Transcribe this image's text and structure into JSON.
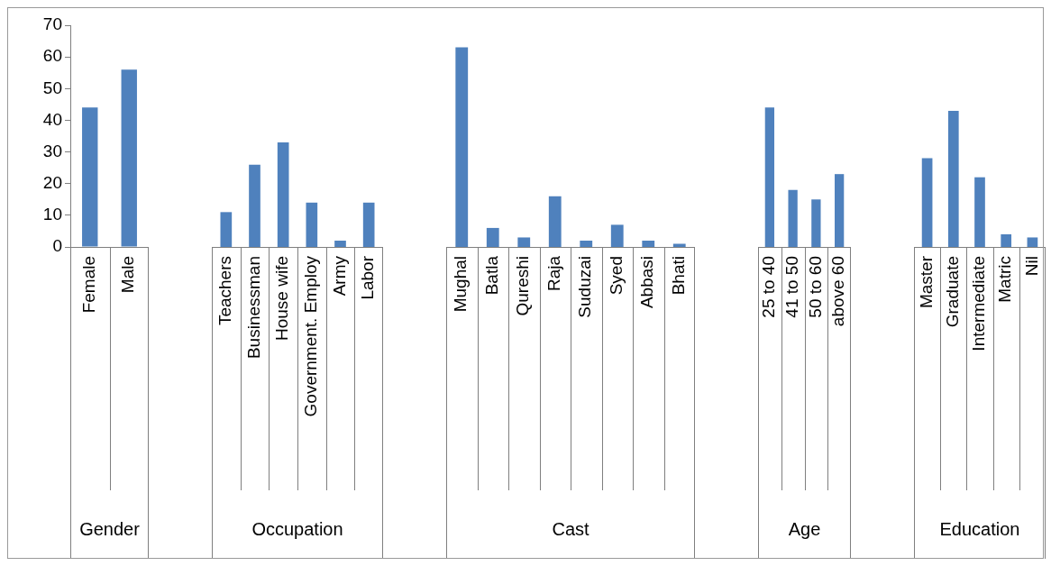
{
  "chart_data": [
    {
      "type": "bar",
      "xlabel": "Gender",
      "categories": [
        "Female",
        "Male"
      ],
      "values": [
        44,
        56
      ],
      "color": "#4f81bd",
      "ylim": [
        0,
        70
      ],
      "yticks": [
        0,
        10,
        20,
        30,
        40,
        50,
        60,
        70
      ],
      "grid": false,
      "legend": false
    },
    {
      "type": "bar",
      "xlabel": "Occupation",
      "categories": [
        "Teachers",
        "Businessman",
        "House wife",
        "Government. Employ",
        "Army",
        "Labor"
      ],
      "values": [
        11,
        26,
        33,
        14,
        2,
        14
      ],
      "color": "#4f81bd",
      "ylim": [
        0,
        70
      ],
      "tick_labels": "x",
      "grid": false,
      "legend": false
    },
    {
      "type": "bar",
      "xlabel": "Cast",
      "categories": [
        "Mughal",
        "Batla",
        "Qureshi",
        "Raja",
        "Suduzai",
        "Syed",
        "Abbasi",
        "Bhati"
      ],
      "values": [
        63,
        6,
        3,
        16,
        2,
        7,
        2,
        1
      ],
      "color": "#4f81bd",
      "ylim": [
        0,
        70
      ],
      "tick_labels": "x",
      "grid": false,
      "legend": false
    },
    {
      "type": "bar",
      "xlabel": "Age",
      "categories": [
        "25 to 40",
        "41 to 50",
        "50 to 60",
        "above 60"
      ],
      "values": [
        44,
        18,
        15,
        23
      ],
      "color": "#4f81bd",
      "ylim": [
        0,
        70
      ],
      "tick_labels": "x",
      "grid": false,
      "legend": false
    },
    {
      "type": "bar",
      "xlabel": "Education",
      "categories": [
        "Master",
        "Graduate",
        "Intermediate",
        "Matric",
        "Nil"
      ],
      "values": [
        28,
        43,
        22,
        4,
        3
      ],
      "color": "#4f81bd",
      "ylim": [
        0,
        70
      ],
      "tick_labels": "x",
      "grid": false,
      "legend": false
    }
  ]
}
